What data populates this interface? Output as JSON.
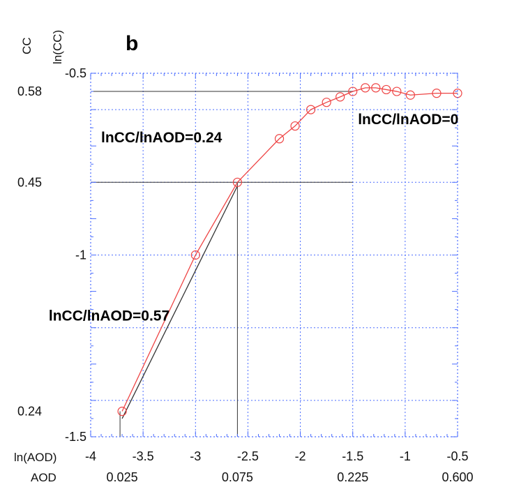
{
  "chart_data": {
    "type": "line",
    "panel_label": "b",
    "xlabel": "ln(AOD)",
    "x2label": "AOD",
    "ylabel": "ln(CC)",
    "y2label": "CC",
    "xlim": [
      -4,
      -0.5
    ],
    "ylim": [
      -1.5,
      -0.5
    ],
    "grid": true,
    "x_ticks": [
      -4,
      -3.5,
      -3,
      -2.5,
      -2,
      -1.5,
      -1,
      -0.5
    ],
    "x_tick_labels": [
      "-4",
      "-3.5",
      "-3",
      "-2.5",
      "-2",
      "-1.5",
      "-1",
      "-0.5"
    ],
    "y_ticks": [
      -1.5,
      -1,
      -0.5
    ],
    "y_tick_labels": [
      "-1.5",
      "-1",
      "-0.5"
    ],
    "aod_ticks": [
      {
        "at": -3.7,
        "label": "0.025"
      },
      {
        "at": -2.6,
        "label": "0.075"
      },
      {
        "at": -1.5,
        "label": "0.225"
      },
      {
        "at": -0.5,
        "label": "0.600"
      }
    ],
    "cc_ticks": [
      {
        "at": -0.55,
        "label": "0.58"
      },
      {
        "at": -0.8,
        "label": "0.45"
      },
      {
        "at": -1.43,
        "label": "0.24"
      }
    ],
    "series": [
      {
        "color": "#ee4444",
        "x": [
          -3.7,
          -3.0,
          -2.6,
          -2.2,
          -2.05,
          -1.9,
          -1.75,
          -1.62,
          -1.5,
          -1.38,
          -1.28,
          -1.18,
          -1.08,
          -0.95,
          -0.7,
          -0.5
        ],
        "y": [
          -1.43,
          -1.0,
          -0.8,
          -0.68,
          -0.645,
          -0.6,
          -0.58,
          -0.565,
          -0.55,
          -0.54,
          -0.54,
          -0.545,
          -0.55,
          -0.56,
          -0.555,
          -0.555
        ]
      }
    ],
    "fit_line": {
      "color": "#333333",
      "x": [
        -3.7,
        -2.6
      ],
      "y": [
        -1.45,
        -0.81
      ]
    },
    "reference_lines": [
      {
        "x": [
          -4,
          -1.5
        ],
        "y": [
          -0.55,
          -0.55
        ]
      },
      {
        "x": [
          -4,
          -1.5
        ],
        "y": [
          -0.8,
          -0.8
        ]
      },
      {
        "x": [
          -2.6,
          -2.6
        ],
        "y": [
          -1.5,
          -0.8
        ]
      },
      {
        "x": [
          -3.72,
          -3.72
        ],
        "y": [
          -1.5,
          -1.43
        ]
      }
    ],
    "annotations": [
      {
        "text": "lnCC/lnAOD=0.24",
        "x": -3.9,
        "y": -0.69
      },
      {
        "text": "lnCC/lnAOD=0",
        "x": -1.45,
        "y": -0.64
      },
      {
        "text": "lnCC/lnAOD=0.57",
        "x": -4.4,
        "y": -1.18
      }
    ]
  }
}
